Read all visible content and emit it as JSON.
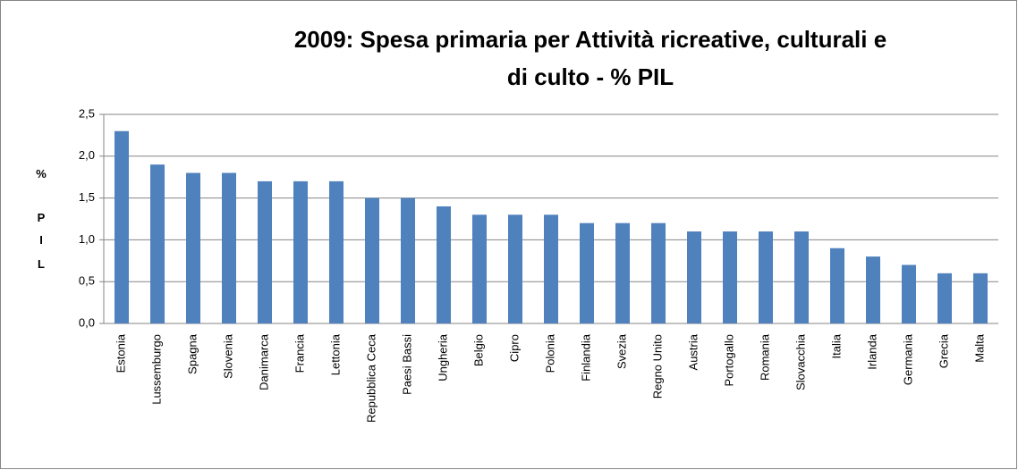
{
  "chart_data": {
    "type": "bar",
    "title": [
      "2009: Spesa primaria per Attività ricreative, culturali e",
      "di culto - % PIL"
    ],
    "y_label": "% PIL",
    "categories": [
      "Estonia",
      "Lussemburgo",
      "Spagna",
      "Slovenia",
      "Danimarca",
      "Francia",
      "Lettonia",
      "Repubblica Ceca",
      "Paesi Bassi",
      "Ungheria",
      "Belgio",
      "Cipro",
      "Polonia",
      "Finlandia",
      "Svezia",
      "Regno Unito",
      "Austria",
      "Portogallo",
      "Romania",
      "Slovacchia",
      "Italia",
      "Irlanda",
      "Germania",
      "Grecia",
      "Malta"
    ],
    "values": [
      2.3,
      1.9,
      1.8,
      1.8,
      1.7,
      1.7,
      1.7,
      1.5,
      1.5,
      1.4,
      1.3,
      1.3,
      1.3,
      1.2,
      1.2,
      1.2,
      1.1,
      1.1,
      1.1,
      1.1,
      0.9,
      0.8,
      0.7,
      0.6,
      0.6
    ],
    "color": "#4f81bd",
    "ylim": [
      0,
      2.5
    ],
    "yticks": [
      {
        "value": 0,
        "label": "0,0"
      },
      {
        "value": 0.5,
        "label": "0,5"
      },
      {
        "value": 1,
        "label": "1,0"
      },
      {
        "value": 1.5,
        "label": "1,5"
      },
      {
        "value": 2,
        "label": "2,0"
      },
      {
        "value": 2.5,
        "label": "2,5"
      }
    ],
    "grid": true
  }
}
